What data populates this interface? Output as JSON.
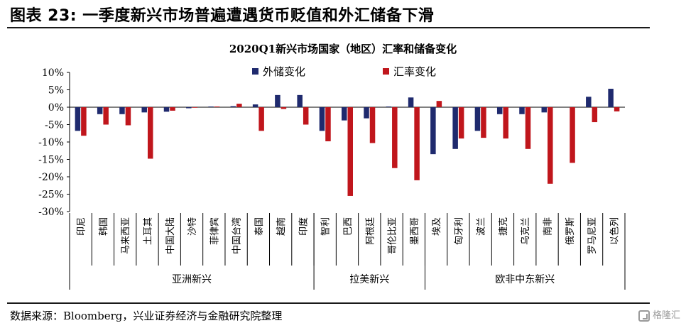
{
  "header": {
    "title": "图表 23:  一季度新兴市场普遍遭遇货币贬值和外汇储备下滑"
  },
  "source": "数据来源：Bloomberg，兴业证券经济与金融研究院整理",
  "watermark": {
    "icon": "gelonghui-logo-icon",
    "text": "格隆汇"
  },
  "colors": {
    "reserve": "#1f2a6e",
    "fx": "#c0161c"
  },
  "chart_data": {
    "type": "bar",
    "title": "2020Q1新兴市场国家（地区）汇率和储备变化",
    "xlabel": "",
    "ylabel": "",
    "ylim": [
      -30,
      10
    ],
    "yticks": [
      "10%",
      "5%",
      "0%",
      "-5%",
      "-10%",
      "-15%",
      "-20%",
      "-25%",
      "-30%"
    ],
    "grid": false,
    "legend_position": "top",
    "categories": [
      "印尼",
      "韩国",
      "马来西亚",
      "土耳其",
      "中国大陆",
      "沙特",
      "菲律宾",
      "中国台湾",
      "泰国",
      "越南",
      "印度",
      "智利",
      "巴西",
      "阿根廷",
      "哥伦比亚",
      "墨西哥",
      "埃及",
      "匈牙利",
      "波兰",
      "捷克",
      "乌克兰",
      "南非",
      "俄罗斯",
      "罗马尼亚",
      "以色列"
    ],
    "groups": [
      {
        "name": "亚洲新兴",
        "count": 11
      },
      {
        "name": "拉美新兴",
        "count": 5
      },
      {
        "name": "欧非中东新兴",
        "count": 9
      }
    ],
    "series": [
      {
        "name": "外储变化",
        "values": [
          -6.8,
          -2.0,
          -2.0,
          -1.5,
          -1.3,
          -0.3,
          0.2,
          0.3,
          0.8,
          3.5,
          3.5,
          -6.8,
          -3.8,
          -3.2,
          0.2,
          2.8,
          -13.5,
          -12.0,
          -6.8,
          -2.0,
          -2.0,
          -1.5,
          0,
          3.0,
          5.3
        ]
      },
      {
        "name": "汇率变化",
        "values": [
          -8.2,
          -5.0,
          -5.2,
          -14.8,
          -1.0,
          -0.1,
          0.2,
          1.0,
          -6.8,
          -0.5,
          -5.0,
          -9.8,
          -25.5,
          -10.3,
          -17.5,
          -21.0,
          1.8,
          -9.0,
          -8.8,
          -9.0,
          -12.0,
          -22.0,
          -16.0,
          -4.3,
          -1.2
        ]
      }
    ]
  }
}
